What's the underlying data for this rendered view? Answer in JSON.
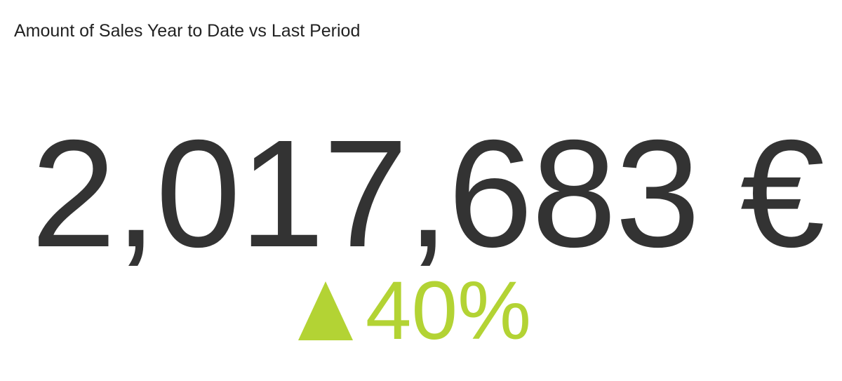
{
  "chart_data": {
    "type": "table",
    "title": "Amount of Sales Year to Date vs Last Period",
    "value": 2017683,
    "value_display": "2,017,683 €",
    "change_percent": 40,
    "change_display": "40%",
    "change_direction": "up",
    "trend_icon": "triangle-up-icon"
  },
  "colors": {
    "value": "#333333",
    "positive": "#b3d334",
    "title": "#222222",
    "background": "#ffffff"
  }
}
